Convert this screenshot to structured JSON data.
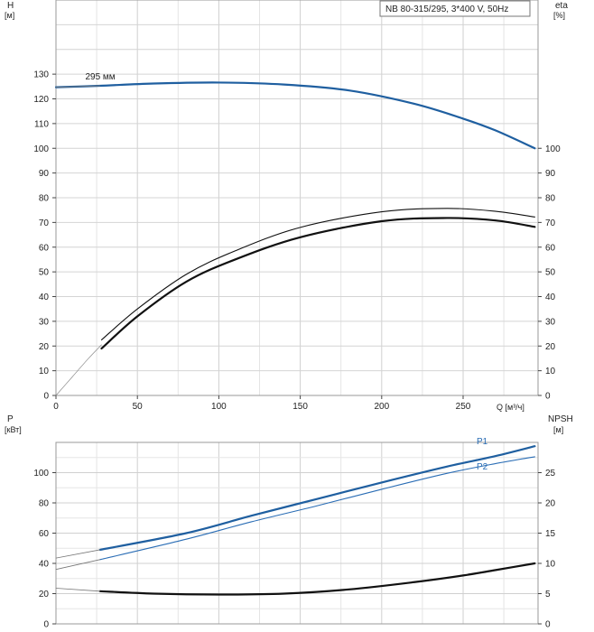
{
  "chart_data": [
    {
      "type": "line",
      "title": "NB 80-315/295, 3*400 V, 50Hz",
      "ylabel_left": "H",
      "ylabel_left_unit": "[м]",
      "ylabel_right": "eta",
      "ylabel_right_unit": "[%]",
      "xlabel": "Q [м³/ч]",
      "xlim": [
        0,
        296
      ],
      "ylim_left": [
        0,
        160
      ],
      "ylim_right": [
        0,
        160
      ],
      "x_ticks": [
        0,
        50,
        100,
        150,
        200,
        250
      ],
      "y_ticks_left": [
        0,
        10,
        20,
        30,
        40,
        50,
        60,
        70,
        80,
        90,
        100,
        110,
        120,
        130
      ],
      "y_ticks_right": [
        0,
        10,
        20,
        30,
        40,
        50,
        60,
        70,
        80,
        90,
        100
      ],
      "grid": true,
      "annotations": [
        {
          "text": "295 мм",
          "x": 18,
          "y": 127.2
        }
      ],
      "series": [
        {
          "axis": "left",
          "color": "#1f5fa0",
          "width": 2.2,
          "x": [
            0,
            27,
            60,
            100,
            140,
            180,
            220,
            250,
            270,
            294
          ],
          "y": [
            124.7,
            125.3,
            126.2,
            126.6,
            125.8,
            123.4,
            118.0,
            112.0,
            107.2,
            100.0
          ]
        },
        {
          "axis": "left",
          "color": "#777777",
          "width": 0.8,
          "x": [
            0,
            27
          ],
          "y": [
            124.7,
            125.3
          ]
        },
        {
          "axis": "right",
          "color": "#111111",
          "width": 2.2,
          "x": [
            28,
            50,
            80,
            110,
            150,
            200,
            240,
            270,
            294
          ],
          "y": [
            19,
            32,
            46,
            55,
            64,
            70.5,
            71.8,
            70.8,
            68.2
          ]
        },
        {
          "axis": "right",
          "color": "#111111",
          "width": 1.1,
          "x": [
            28,
            50,
            80,
            110,
            150,
            200,
            240,
            270,
            294
          ],
          "y": [
            22.5,
            35,
            49,
            58.5,
            68,
            74.3,
            75.7,
            74.5,
            72.2
          ]
        },
        {
          "axis": "right",
          "color": "#888888",
          "width": 0.7,
          "x": [
            0,
            10,
            20,
            28
          ],
          "y": [
            0,
            7.5,
            15,
            20.5
          ]
        }
      ]
    },
    {
      "type": "line",
      "ylabel_left": "P",
      "ylabel_left_unit": "[кВт]",
      "ylabel_right": "NPSH",
      "ylabel_right_unit": "[м]",
      "xlim": [
        0,
        296
      ],
      "ylim_left": [
        0,
        120
      ],
      "ylim_right": [
        0,
        30
      ],
      "y_ticks_left": [
        0,
        20,
        40,
        60,
        80,
        100
      ],
      "y_ticks_right": [
        0,
        5,
        10,
        15,
        20,
        25
      ],
      "grid": true,
      "series": [
        {
          "name": "P1",
          "axis": "left",
          "color": "#1f5fa0",
          "width": 2.2,
          "x": [
            27,
            80,
            120,
            160,
            200,
            240,
            270,
            294
          ],
          "y": [
            49,
            60,
            71.5,
            82.5,
            93.5,
            104,
            111,
            117.5
          ]
        },
        {
          "axis": "left",
          "color": "#777777",
          "width": 0.8,
          "x": [
            0,
            27
          ],
          "y": [
            43.5,
            49
          ]
        },
        {
          "name": "P2",
          "axis": "left",
          "color": "#2a6db5",
          "width": 1.1,
          "x": [
            27,
            80,
            120,
            160,
            200,
            240,
            270,
            294
          ],
          "y": [
            42.5,
            56,
            67.5,
            78,
            89,
            99.5,
            106,
            110.5
          ]
        },
        {
          "axis": "left",
          "color": "#777777",
          "width": 0.8,
          "x": [
            0,
            27
          ],
          "y": [
            36,
            42.5
          ]
        },
        {
          "axis": "right",
          "color": "#111111",
          "width": 2.2,
          "x": [
            27,
            60,
            100,
            140,
            180,
            220,
            250,
            270,
            294
          ],
          "y": [
            5.4,
            5.0,
            4.85,
            5.0,
            5.7,
            6.9,
            8.0,
            8.9,
            10.0
          ]
        },
        {
          "axis": "right",
          "color": "#777777",
          "width": 0.8,
          "x": [
            0,
            27
          ],
          "y": [
            5.9,
            5.4
          ]
        }
      ]
    }
  ]
}
